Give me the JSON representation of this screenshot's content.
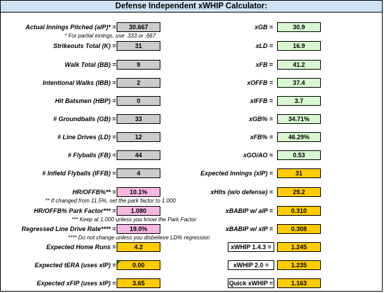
{
  "title": "Defense Independent xWHIP Calculator:",
  "left": {
    "aip": {
      "label": "Actual Innings Pitched (aIP)* =",
      "value": "30.667"
    },
    "aip_note": "* For partial innings, use .333 or .667",
    "k": {
      "label": "Strikeouts Total (K) =",
      "value": "31"
    },
    "bb": {
      "label": "Walk Total (BB) =",
      "value": "9"
    },
    "ibb": {
      "label": "Intentional Walks (IBB) =",
      "value": "2"
    },
    "hbp": {
      "label": "Hit Batsmen (HBP) =",
      "value": "0"
    },
    "gb": {
      "label": "# Groundballs (GB) =",
      "value": "33"
    },
    "ld": {
      "label": "# Line Drives (LD) =",
      "value": "12"
    },
    "fb": {
      "label": "# Flyballs (FB) =",
      "value": "44"
    },
    "iffb": {
      "label": "# Infield Flyballs (IFFB) =",
      "value": "4"
    },
    "hr": {
      "label": "HR/OFFB%** =",
      "value": "10.1%"
    },
    "hr_note": "** If changed from 11.5%, set the park factor to 1.000",
    "pf": {
      "label": "HR/OFFB% Park Factor*** =",
      "value": "1.080"
    },
    "pf_note": "*** Keep at 1.000 unless you know the Park Factor",
    "rld": {
      "label": "Regressed Line Drive Rate**** =",
      "value": "19.0%"
    },
    "rld_note": "**** Do not change unless you disbelieve LD% regression",
    "ehr": {
      "label": "Expected Home Runs =",
      "value": "4.2"
    },
    "tera": {
      "label": "Expected tERA (uses xIP) =",
      "value": "0.00"
    },
    "xfip": {
      "label": "Expected xFIP (uses xIP) =",
      "value": "3.65"
    }
  },
  "right": {
    "xgb": {
      "label": "xGB =",
      "value": "30.9"
    },
    "xld": {
      "label": "xLD =",
      "value": "16.9"
    },
    "xfb": {
      "label": "xFB =",
      "value": "41.2"
    },
    "xoffb": {
      "label": "xOFFB =",
      "value": "37.4"
    },
    "xiffb": {
      "label": "xIFFB =",
      "value": "3.7"
    },
    "xgbp": {
      "label": "xGB% =",
      "value": "34.71%"
    },
    "xfbp": {
      "label": "xFB% =",
      "value": "46.29%"
    },
    "xgoao": {
      "label": "xGO/AO =",
      "value": "0.53"
    },
    "xip": {
      "label": "Expected Innings (xIP) =",
      "value": "31"
    },
    "xhits": {
      "label": "xHits (w/o defense) =",
      "value": "29.2"
    },
    "xbabip_aip": {
      "label": "xBABIP w/ aIP =",
      "value": "0.310"
    },
    "xbabip_xip": {
      "label": "xBABIP w/ xIP =",
      "value": "0.308"
    },
    "xwhip143": {
      "label": "xWHIP 1.4.3 =",
      "value": "1.245"
    },
    "xwhip20": {
      "label": "xWHIP 2.0 =",
      "value": "1.235"
    },
    "quick": {
      "label": "Quick xWHIP =",
      "value": "1.163"
    }
  },
  "colors": {
    "input": "#cccccc",
    "calc": "#d9f7d0",
    "param": "#f5b8e0",
    "result": "#ffcc00",
    "title_bg": "#cfe2f3"
  }
}
